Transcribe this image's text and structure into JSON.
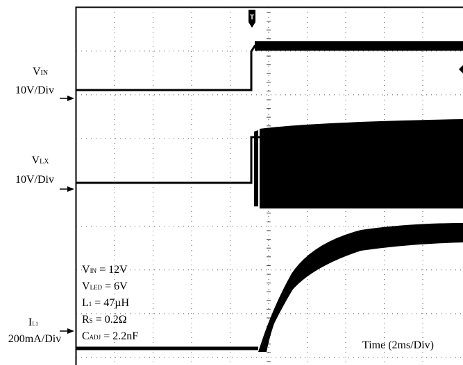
{
  "chart_data": {
    "type": "line",
    "title": "",
    "x_division": "2ms/Div",
    "time_label": "Time (2ms/Div)",
    "x_divisions": 10,
    "y_divisions": 8,
    "grid": "dotted, on",
    "trigger_marker": "T",
    "background": "#ffffff",
    "trace_color": "#000000",
    "channels": [
      {
        "symbol": "V",
        "subscript": "IN",
        "scale": "10V/Div",
        "behavior": "step from 12V supply at power-up",
        "before_step_V": 0,
        "after_step_V": 12
      },
      {
        "symbol": "V",
        "subscript": "LX",
        "scale": "10V/Div",
        "behavior": "switching node, chopping between ground and supply after power-up",
        "low_V": 0,
        "high_V": 12
      },
      {
        "symbol": "I",
        "subscript": "L1",
        "scale": "200mA/Div",
        "behavior": "inductor current ramping up to steady state with ripple",
        "start_mA": 0,
        "steady_mA": 600
      }
    ],
    "conditions": [
      {
        "symbol": "V",
        "subscript": "IN",
        "value": "= 12V"
      },
      {
        "symbol": "V",
        "subscript": "LED",
        "value": "= 6V"
      },
      {
        "symbol": "L",
        "subscript": "1",
        "value": "= 47µH"
      },
      {
        "symbol": "R",
        "subscript": "S",
        "value": "= 0.2Ω"
      },
      {
        "symbol": "C",
        "subscript": "ADJ",
        "value": "= 2.2nF"
      }
    ]
  }
}
